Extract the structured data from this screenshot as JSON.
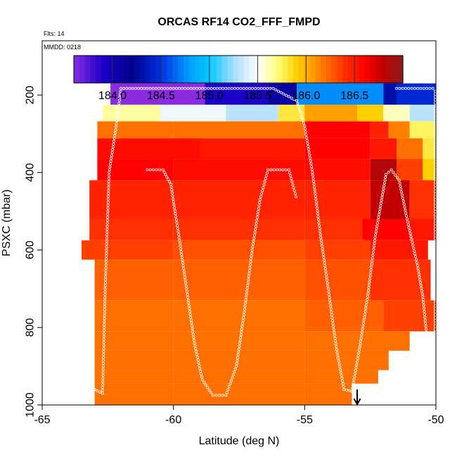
{
  "chart_data": {
    "type": "heatmap",
    "title": "ORCAS RF14 CO2_FFF_FMPD",
    "note_flights": "Flts: 14",
    "note_date": "MMDD: 0218",
    "xlabel": "Latitude (deg N)",
    "ylabel": "PSXC (mbar)",
    "xlim": [
      -65,
      -50
    ],
    "ylim": [
      1000,
      60
    ],
    "x_ticks": [
      -65,
      -60,
      -55,
      -50
    ],
    "x_tick_labels": [
      "-65",
      "-60",
      "-55",
      "-50"
    ],
    "y_ticks": [
      200,
      400,
      600,
      800,
      1000
    ],
    "y_tick_labels": [
      "200",
      "400",
      "600",
      "800",
      "1000"
    ],
    "colorbar": {
      "min": 183.6,
      "max": 187.0,
      "ticks": [
        184.0,
        184.5,
        185.0,
        185.5,
        186.0,
        186.5
      ],
      "tick_labels": [
        "184.0",
        "184.5",
        "185.0",
        "185.5",
        "186.0",
        "186.5"
      ],
      "stops": [
        [
          183.6,
          "#8a2be2"
        ],
        [
          183.9,
          "#1a00c8"
        ],
        [
          184.2,
          "#00008b"
        ],
        [
          184.5,
          "#0030e0"
        ],
        [
          184.8,
          "#00a0ff"
        ],
        [
          185.0,
          "#00c8ff"
        ],
        [
          185.25,
          "#a8dcff"
        ],
        [
          185.5,
          "#ffffff"
        ],
        [
          185.7,
          "#ffff80"
        ],
        [
          185.9,
          "#ffd000"
        ],
        [
          186.1,
          "#ff9000"
        ],
        [
          186.4,
          "#ff3000"
        ],
        [
          186.6,
          "#ff0000"
        ],
        [
          186.8,
          "#c00000"
        ],
        [
          187.0,
          "#8b1a1a"
        ]
      ]
    },
    "pressure_bands": [
      {
        "p": [
          170,
          225
        ],
        "cells": [
          [
            -62.4,
            -58.8,
            183.6
          ],
          [
            -58.8,
            -56.4,
            183.9
          ],
          [
            -56.4,
            -55.3,
            184.1
          ],
          [
            -55.3,
            -52.0,
            184.75
          ],
          [
            -52.0,
            -51.5,
            184.3
          ],
          [
            -51.5,
            -50.0,
            184.45
          ]
        ]
      },
      {
        "p": [
          225,
          268
        ],
        "cells": [
          [
            -62.7,
            -60.5,
            185.65
          ],
          [
            -60.5,
            -58.0,
            185.45
          ],
          [
            -58.0,
            -56.0,
            185.3
          ],
          [
            -56.0,
            -55.0,
            185.8
          ],
          [
            -55.0,
            -53.0,
            186.05
          ],
          [
            -53.0,
            -52.0,
            185.9
          ],
          [
            -52.0,
            -51.0,
            185.6
          ],
          [
            -51.0,
            -50.0,
            185.3
          ]
        ]
      },
      {
        "p": [
          268,
          312
        ],
        "cells": [
          [
            -62.9,
            -60.0,
            186.2
          ],
          [
            -60.0,
            -55.0,
            186.2
          ],
          [
            -55.0,
            -52.5,
            186.6
          ],
          [
            -52.5,
            -51.8,
            186.45
          ],
          [
            -51.8,
            -51.0,
            186.15
          ],
          [
            -51.0,
            -50.0,
            185.75
          ]
        ]
      },
      {
        "p": [
          312,
          365
        ],
        "cells": [
          [
            -62.9,
            -59.0,
            186.55
          ],
          [
            -59.0,
            -55.0,
            186.5
          ],
          [
            -55.0,
            -52.5,
            186.6
          ],
          [
            -52.5,
            -51.5,
            186.5
          ],
          [
            -51.5,
            -50.5,
            186.2
          ],
          [
            -50.5,
            -50.0,
            185.8
          ]
        ]
      },
      {
        "p": [
          365,
          420
        ],
        "cells": [
          [
            -62.9,
            -60.0,
            186.6
          ],
          [
            -60.0,
            -55.0,
            186.55
          ],
          [
            -55.0,
            -52.5,
            186.55
          ],
          [
            -52.5,
            -51.5,
            186.85
          ],
          [
            -51.5,
            -50.5,
            186.35
          ],
          [
            -50.5,
            -50.0,
            185.9
          ]
        ]
      },
      {
        "p": [
          420,
          520
        ],
        "cells": [
          [
            -63.2,
            -60.0,
            186.45
          ],
          [
            -60.0,
            -55.0,
            186.45
          ],
          [
            -55.0,
            -52.5,
            186.45
          ],
          [
            -52.5,
            -51.0,
            186.8
          ],
          [
            -51.0,
            -50.0,
            186.4
          ]
        ]
      },
      {
        "p": [
          520,
          575
        ],
        "cells": [
          [
            -63.2,
            -60.0,
            186.4
          ],
          [
            -60.0,
            -55.0,
            186.4
          ],
          [
            -55.0,
            -52.8,
            186.4
          ],
          [
            -52.8,
            -51.0,
            186.6
          ],
          [
            -51.0,
            -50.0,
            186.5
          ]
        ]
      },
      {
        "p": [
          575,
          625
        ],
        "cells": [
          [
            -63.5,
            -60.0,
            186.35
          ],
          [
            -60.0,
            -55.0,
            186.3
          ],
          [
            -55.0,
            -52.5,
            186.35
          ],
          [
            -52.5,
            -50.3,
            186.5
          ]
        ]
      },
      {
        "p": [
          625,
          730
        ],
        "cells": [
          [
            -63.0,
            -60.0,
            186.25
          ],
          [
            -60.0,
            -55.0,
            186.25
          ],
          [
            -55.0,
            -52.5,
            186.3
          ],
          [
            -52.5,
            -50.2,
            186.4
          ]
        ]
      },
      {
        "p": [
          730,
          810
        ],
        "cells": [
          [
            -63.0,
            -60.0,
            186.2
          ],
          [
            -60.0,
            -55.0,
            186.2
          ],
          [
            -55.0,
            -52.0,
            186.25
          ],
          [
            -52.0,
            -50.0,
            186.35
          ]
        ]
      },
      {
        "p": [
          810,
          860
        ],
        "cells": [
          [
            -63.0,
            -60.0,
            186.2
          ],
          [
            -60.0,
            -55.0,
            186.2
          ],
          [
            -55.0,
            -51.0,
            186.2
          ]
        ]
      },
      {
        "p": [
          860,
          910
        ],
        "cells": [
          [
            -63.0,
            -60.0,
            186.2
          ],
          [
            -60.0,
            -55.0,
            186.2
          ],
          [
            -55.0,
            -51.8,
            186.2
          ]
        ]
      },
      {
        "p": [
          910,
          945
        ],
        "cells": [
          [
            -63.0,
            -60.0,
            186.2
          ],
          [
            -60.0,
            -55.0,
            186.2
          ],
          [
            -55.0,
            -52.2,
            186.2
          ]
        ]
      },
      {
        "p": [
          945,
          1000
        ],
        "cells": [
          [
            -63.0,
            -60.0,
            186.2
          ],
          [
            -60.0,
            -55.0,
            186.2
          ],
          [
            -55.0,
            -53.2,
            186.2
          ]
        ]
      }
    ],
    "flight_track": [
      [
        -63.0,
        960
      ],
      [
        -62.7,
        970
      ],
      [
        -62.6,
        700
      ],
      [
        -62.45,
        400
      ],
      [
        -62.2,
        290
      ],
      [
        -62.0,
        183
      ],
      [
        -60.0,
        183
      ],
      [
        -58.0,
        183
      ],
      [
        -56.2,
        183
      ],
      [
        -55.3,
        215
      ],
      [
        -55.0,
        280
      ],
      [
        -54.7,
        400
      ],
      [
        -54.4,
        560
      ],
      [
        -54.1,
        700
      ],
      [
        -53.8,
        850
      ],
      [
        -53.5,
        960
      ],
      [
        -53.2,
        965
      ],
      [
        -52.9,
        850
      ],
      [
        -52.6,
        720
      ],
      [
        -52.3,
        560
      ],
      [
        -51.9,
        405
      ],
      [
        -51.7,
        393
      ],
      [
        -51.4,
        420
      ],
      [
        -51.1,
        520
      ],
      [
        -50.7,
        640
      ],
      [
        -50.5,
        720
      ],
      [
        -50.35,
        820
      ]
    ],
    "flight_track_2": [
      [
        -61.0,
        393
      ],
      [
        -60.4,
        393
      ],
      [
        -60.1,
        430
      ],
      [
        -59.8,
        560
      ],
      [
        -59.5,
        700
      ],
      [
        -59.2,
        840
      ],
      [
        -58.9,
        935
      ],
      [
        -58.5,
        975
      ],
      [
        -58.0,
        975
      ],
      [
        -57.6,
        900
      ],
      [
        -57.3,
        760
      ],
      [
        -57.0,
        600
      ],
      [
        -56.7,
        470
      ],
      [
        -56.4,
        393
      ],
      [
        -55.6,
        393
      ],
      [
        -55.3,
        470
      ]
    ],
    "flight_track_3": [
      [
        -51.5,
        183
      ],
      [
        -50.0,
        183
      ]
    ],
    "flight_track_4": [
      [
        -50.03,
        190
      ],
      [
        -50.03,
        820
      ]
    ],
    "marker": {
      "lat": -53.0,
      "p_top": 960,
      "p_bottom": 1000
    }
  }
}
